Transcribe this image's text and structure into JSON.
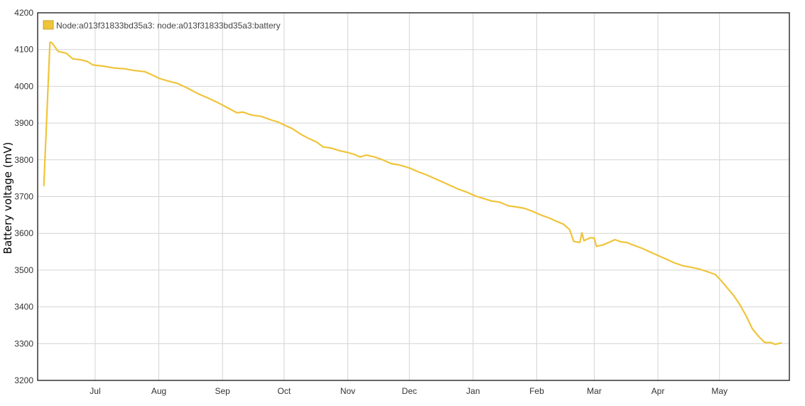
{
  "chart_data": {
    "type": "line",
    "ylabel": "Battery voltage (mV)",
    "xlabel": "",
    "title": "",
    "ylim": [
      3200,
      4200
    ],
    "yticks": [
      3200,
      3300,
      3400,
      3500,
      3600,
      3700,
      3800,
      3900,
      4000,
      4100,
      4200
    ],
    "xlim": [
      "2017-06-03",
      "2018-06-04"
    ],
    "xticks": [
      {
        "label": "Jul",
        "date": "2017-07-01"
      },
      {
        "label": "Aug",
        "date": "2017-08-01"
      },
      {
        "label": "Sep",
        "date": "2017-09-01"
      },
      {
        "label": "Oct",
        "date": "2017-10-01"
      },
      {
        "label": "Nov",
        "date": "2017-11-01"
      },
      {
        "label": "Dec",
        "date": "2017-12-01"
      },
      {
        "label": "Jan",
        "date": "2018-01-01"
      },
      {
        "label": "Feb",
        "date": "2018-02-01"
      },
      {
        "label": "Mar",
        "date": "2018-03-01"
      },
      {
        "label": "Apr",
        "date": "2018-04-01"
      },
      {
        "label": "May",
        "date": "2018-05-01"
      }
    ],
    "grid": true,
    "legend_position": "top-left",
    "series": [
      {
        "name": "Node:a013f31833bd35a3: node:a013f31833bd35a3:battery",
        "color": "#f0c43a",
        "points": [
          [
            "2017-06-06",
            3730
          ],
          [
            "2017-06-09",
            4120
          ],
          [
            "2017-06-10",
            4118
          ],
          [
            "2017-06-13",
            4095
          ],
          [
            "2017-06-17",
            4090
          ],
          [
            "2017-06-20",
            4075
          ],
          [
            "2017-06-24",
            4072
          ],
          [
            "2017-06-27",
            4068
          ],
          [
            "2017-06-30",
            4058
          ],
          [
            "2017-07-05",
            4055
          ],
          [
            "2017-07-10",
            4050
          ],
          [
            "2017-07-15",
            4048
          ],
          [
            "2017-07-20",
            4043
          ],
          [
            "2017-07-25",
            4040
          ],
          [
            "2017-07-28",
            4033
          ],
          [
            "2017-08-01",
            4022
          ],
          [
            "2017-08-05",
            4015
          ],
          [
            "2017-08-10",
            4008
          ],
          [
            "2017-08-15",
            3995
          ],
          [
            "2017-08-20",
            3980
          ],
          [
            "2017-08-25",
            3968
          ],
          [
            "2017-08-30",
            3955
          ],
          [
            "2017-09-04",
            3940
          ],
          [
            "2017-09-08",
            3928
          ],
          [
            "2017-09-11",
            3930
          ],
          [
            "2017-09-15",
            3922
          ],
          [
            "2017-09-20",
            3918
          ],
          [
            "2017-09-25",
            3908
          ],
          [
            "2017-09-28",
            3903
          ],
          [
            "2017-10-01",
            3895
          ],
          [
            "2017-10-05",
            3885
          ],
          [
            "2017-10-09",
            3870
          ],
          [
            "2017-10-13",
            3858
          ],
          [
            "2017-10-17",
            3848
          ],
          [
            "2017-10-20",
            3835
          ],
          [
            "2017-10-24",
            3832
          ],
          [
            "2017-10-28",
            3825
          ],
          [
            "2017-11-01",
            3820
          ],
          [
            "2017-11-04",
            3815
          ],
          [
            "2017-11-07",
            3808
          ],
          [
            "2017-11-10",
            3813
          ],
          [
            "2017-11-14",
            3808
          ],
          [
            "2017-11-18",
            3800
          ],
          [
            "2017-11-22",
            3790
          ],
          [
            "2017-11-26",
            3786
          ],
          [
            "2017-12-01",
            3778
          ],
          [
            "2017-12-05",
            3768
          ],
          [
            "2017-12-09",
            3760
          ],
          [
            "2017-12-13",
            3750
          ],
          [
            "2017-12-17",
            3740
          ],
          [
            "2017-12-21",
            3730
          ],
          [
            "2017-12-25",
            3720
          ],
          [
            "2017-12-29",
            3712
          ],
          [
            "2018-01-02",
            3702
          ],
          [
            "2018-01-06",
            3695
          ],
          [
            "2018-01-10",
            3688
          ],
          [
            "2018-01-14",
            3685
          ],
          [
            "2018-01-18",
            3675
          ],
          [
            "2018-01-22",
            3672
          ],
          [
            "2018-01-26",
            3668
          ],
          [
            "2018-01-30",
            3660
          ],
          [
            "2018-02-03",
            3650
          ],
          [
            "2018-02-07",
            3642
          ],
          [
            "2018-02-11",
            3632
          ],
          [
            "2018-02-14",
            3625
          ],
          [
            "2018-02-17",
            3610
          ],
          [
            "2018-02-19",
            3578
          ],
          [
            "2018-02-22",
            3575
          ],
          [
            "2018-02-23",
            3602
          ],
          [
            "2018-02-24",
            3580
          ],
          [
            "2018-02-27",
            3588
          ],
          [
            "2018-03-01",
            3587
          ],
          [
            "2018-03-02",
            3565
          ],
          [
            "2018-03-05",
            3568
          ],
          [
            "2018-03-08",
            3575
          ],
          [
            "2018-03-11",
            3583
          ],
          [
            "2018-03-14",
            3577
          ],
          [
            "2018-03-17",
            3575
          ],
          [
            "2018-03-20",
            3568
          ],
          [
            "2018-03-24",
            3560
          ],
          [
            "2018-03-28",
            3550
          ],
          [
            "2018-04-01",
            3540
          ],
          [
            "2018-04-05",
            3530
          ],
          [
            "2018-04-09",
            3520
          ],
          [
            "2018-04-13",
            3512
          ],
          [
            "2018-04-17",
            3508
          ],
          [
            "2018-04-21",
            3503
          ],
          [
            "2018-04-25",
            3496
          ],
          [
            "2018-04-29",
            3488
          ],
          [
            "2018-05-02",
            3470
          ],
          [
            "2018-05-05",
            3450
          ],
          [
            "2018-05-08",
            3430
          ],
          [
            "2018-05-11",
            3405
          ],
          [
            "2018-05-14",
            3375
          ],
          [
            "2018-05-17",
            3340
          ],
          [
            "2018-05-20",
            3320
          ],
          [
            "2018-05-23",
            3303
          ],
          [
            "2018-05-26",
            3303
          ],
          [
            "2018-05-28",
            3298
          ],
          [
            "2018-05-31",
            3302
          ]
        ]
      }
    ]
  }
}
